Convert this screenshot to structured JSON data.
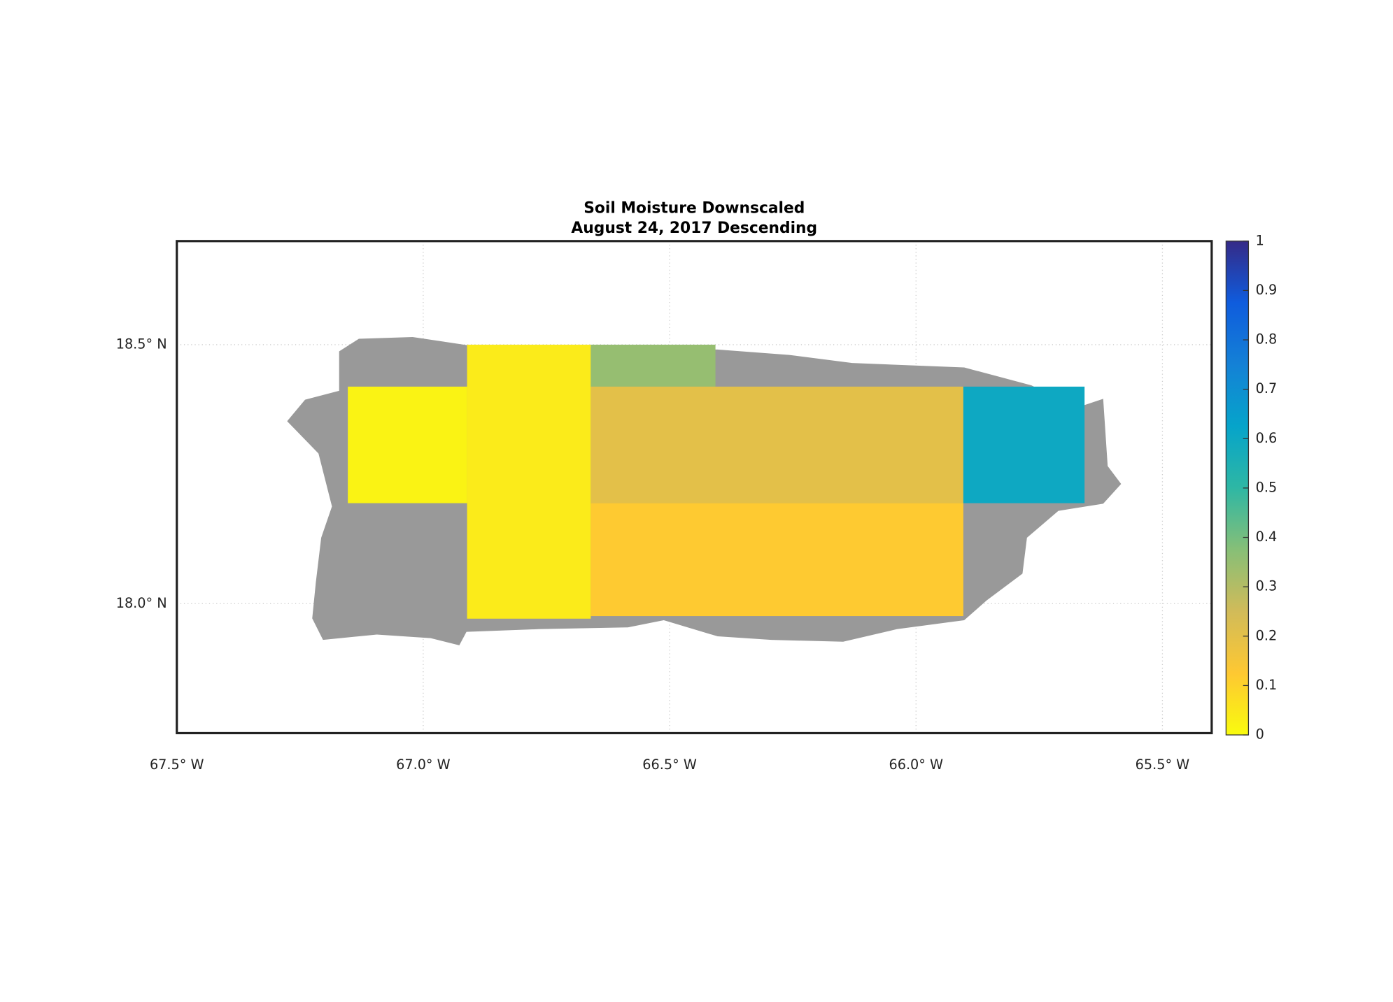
{
  "chart_data": {
    "type": "map",
    "title": "Soil Moisture Downscaled",
    "subtitle": "August 24, 2017 Descending",
    "xlim": [
      -67.5,
      -65.4
    ],
    "ylim": [
      17.75,
      18.7
    ],
    "xticks": [
      {
        "value": -67.5,
        "label": "67.5° W"
      },
      {
        "value": -67.0,
        "label": "67.0° W"
      },
      {
        "value": -66.5,
        "label": "66.5° W"
      },
      {
        "value": -66.0,
        "label": "66.0° W"
      },
      {
        "value": -65.5,
        "label": "65.5° W"
      }
    ],
    "yticks": [
      {
        "value": 18.0,
        "label": "18.0° N"
      },
      {
        "value": 18.5,
        "label": "18.5° N"
      }
    ],
    "grid": true,
    "clim": [
      0,
      1
    ],
    "cticks": [
      0,
      0.1,
      0.2,
      0.3,
      0.4,
      0.5,
      0.6,
      0.7,
      0.8,
      0.9,
      1
    ],
    "tiles": [
      {
        "lon": [
          -67.153,
          -66.911
        ],
        "lat": [
          18.194,
          18.419
        ],
        "value": 0.02
      },
      {
        "lon": [
          -66.911,
          -66.66
        ],
        "lat": [
          17.971,
          18.5
        ],
        "value": 0.04
      },
      {
        "lon": [
          -66.66,
          -66.407
        ],
        "lat": [
          18.419,
          18.5
        ],
        "value": 0.35
      },
      {
        "lon": [
          -66.66,
          -65.904
        ],
        "lat": [
          18.194,
          18.419
        ],
        "value": 0.2
      },
      {
        "lon": [
          -65.904,
          -65.658
        ],
        "lat": [
          18.194,
          18.419
        ],
        "value": 0.6
      },
      {
        "lon": [
          -66.66,
          -65.904
        ],
        "lat": [
          17.976,
          18.194
        ],
        "value": 0.12
      }
    ]
  }
}
